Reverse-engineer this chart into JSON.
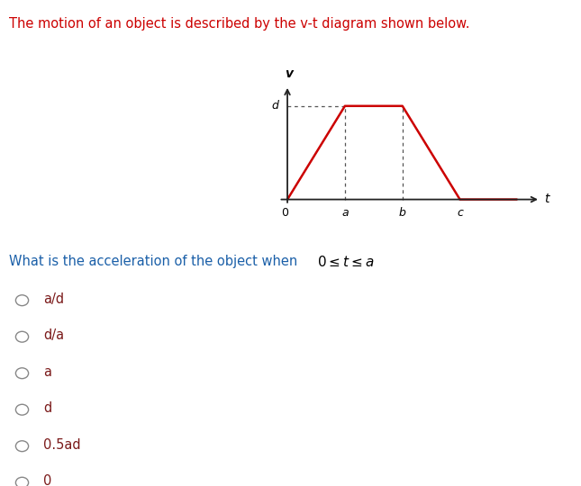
{
  "title": "The motion of an object is described by the v-t diagram shown below.",
  "title_color": "#cc0000",
  "title_fontsize": 10.5,
  "question_color": "#1a5fa8",
  "question_fontsize": 10.5,
  "choices": [
    "a/d",
    "d/a",
    "a",
    "d",
    "0.5ad",
    "0"
  ],
  "choices_color": "#7b1a1a",
  "choices_fontsize": 10.5,
  "graph": {
    "trapezoid_x": [
      0,
      1,
      2,
      3,
      4
    ],
    "trapezoid_y": [
      0,
      1,
      1,
      0,
      0
    ],
    "line_color": "#cc0000",
    "line_width": 1.8,
    "axis_color": "#222222",
    "dashed_color": "#555555",
    "v_label": "v",
    "t_label": "t",
    "d_label": "d",
    "x_labels": [
      "0",
      "a",
      "b",
      "c"
    ]
  },
  "background_color": "#ffffff"
}
